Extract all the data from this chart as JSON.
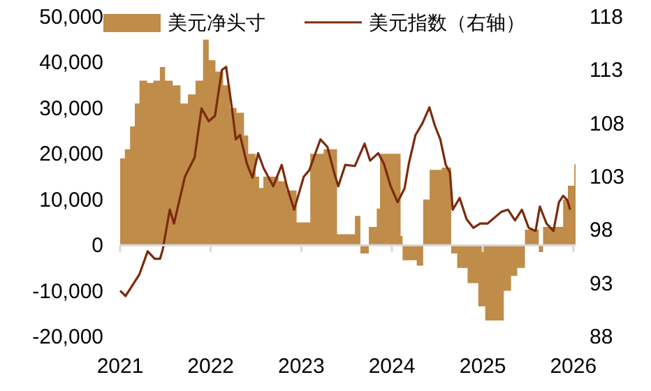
{
  "chart_data": {
    "type": "area",
    "legend": "top",
    "xlim": [
      "2021-01-01",
      "2026-01-10"
    ],
    "xticks": [
      {
        "value": "2021-01-01",
        "label": "2021"
      },
      {
        "value": "2022-01-01",
        "label": "2022"
      },
      {
        "value": "2023-01-01",
        "label": "2023"
      },
      {
        "value": "2024-01-01",
        "label": "2024"
      },
      {
        "value": "2025-01-01",
        "label": "2025"
      },
      {
        "value": "2026-01-01",
        "label": "2026"
      }
    ],
    "ylim": [
      -20000,
      50000
    ],
    "yticks": [
      {
        "value": -20000,
        "label": "-20,000"
      },
      {
        "value": -10000,
        "label": "-10,000"
      },
      {
        "value": 0,
        "label": "0"
      },
      {
        "value": 10000,
        "label": "10,000"
      },
      {
        "value": 20000,
        "label": "20,000"
      },
      {
        "value": 30000,
        "label": "30,000"
      },
      {
        "value": 40000,
        "label": "40,000"
      },
      {
        "value": 50000,
        "label": "50,000"
      }
    ],
    "y2lim": [
      88,
      118
    ],
    "y2ticks": [
      88,
      93,
      98,
      103,
      108,
      113,
      118
    ],
    "series": [
      {
        "name": "美元净头寸",
        "type": "area",
        "color": "#bf8c4a",
        "x": [
          "2021-01-01",
          "2021-01-20",
          "2021-02-10",
          "2021-03-01",
          "2021-03-20",
          "2021-04-20",
          "2021-05-15",
          "2021-06-10",
          "2021-07-01",
          "2021-08-01",
          "2021-09-01",
          "2021-10-01",
          "2021-11-01",
          "2021-12-01",
          "2021-12-24",
          "2022-01-20",
          "2022-02-20",
          "2022-03-20",
          "2022-04-15",
          "2022-05-15",
          "2022-06-01",
          "2022-07-01",
          "2022-07-15",
          "2022-08-01",
          "2022-09-01",
          "2022-10-01",
          "2022-11-01",
          "2022-12-13",
          "2023-02-06",
          "2023-04-01",
          "2023-05-25",
          "2023-08-05",
          "2023-08-27",
          "2023-09-30",
          "2023-11-01",
          "2023-11-14",
          "2024-02-05",
          "2024-02-13",
          "2024-04-10",
          "2024-05-06",
          "2024-06-01",
          "2024-07-20",
          "2024-08-27",
          "2024-09-20",
          "2024-11-01",
          "2024-12-14",
          "2025-01-11",
          "2025-03-27",
          "2025-04-25",
          "2025-05-20",
          "2025-06-20",
          "2025-08-15",
          "2025-09-01",
          "2025-11-21",
          "2025-12-10",
          "2026-01-05"
        ],
        "values": [
          19000,
          21000,
          26000,
          31000,
          36000,
          35500,
          36000,
          39000,
          36000,
          35000,
          31000,
          33000,
          36000,
          45000,
          40500,
          38000,
          35000,
          30000,
          29000,
          24000,
          20000,
          15000,
          12500,
          15000,
          15000,
          14000,
          12000,
          5000,
          20000,
          21000,
          2400,
          6400,
          -1800,
          4000,
          8000,
          20000,
          2000,
          -3300,
          -4500,
          10000,
          16500,
          17000,
          -1800,
          -5000,
          -8300,
          -13400,
          -16500,
          -10000,
          -6700,
          -5000,
          3400,
          -1500,
          4000,
          10000,
          13000,
          17700
        ]
      },
      {
        "name": "美元指数（右轴）",
        "type": "line",
        "axis": "y2",
        "color": "#7b2a0c",
        "x": [
          "2021-01-01",
          "2021-01-23",
          "2021-03-19",
          "2021-04-22",
          "2021-05-20",
          "2021-06-11",
          "2021-06-22",
          "2021-07-20",
          "2021-08-06",
          "2021-09-19",
          "2021-10-28",
          "2021-11-25",
          "2021-12-24",
          "2022-01-18",
          "2022-02-15",
          "2022-03-04",
          "2022-03-27",
          "2022-04-12",
          "2022-04-29",
          "2022-05-27",
          "2022-06-18",
          "2022-07-11",
          "2022-08-02",
          "2022-09-10",
          "2022-10-14",
          "2022-11-05",
          "2022-12-03",
          "2023-01-11",
          "2023-02-02",
          "2023-03-19",
          "2023-04-16",
          "2023-05-13",
          "2023-05-30",
          "2023-06-27",
          "2023-08-05",
          "2023-09-13",
          "2023-10-05",
          "2023-11-07",
          "2023-11-30",
          "2023-12-27",
          "2024-01-24",
          "2024-02-21",
          "2024-03-09",
          "2024-04-05",
          "2024-05-03",
          "2024-05-31",
          "2024-06-22",
          "2024-07-14",
          "2024-08-05",
          "2024-08-22",
          "2024-09-02",
          "2024-09-30",
          "2024-10-28",
          "2024-11-24",
          "2024-12-22",
          "2025-01-20",
          "2025-03-17",
          "2025-04-13",
          "2025-05-11",
          "2025-06-08",
          "2025-07-05",
          "2025-08-02",
          "2025-08-19",
          "2025-09-15",
          "2025-10-13",
          "2025-11-04",
          "2025-11-21",
          "2025-12-08",
          "2025-12-19"
        ],
        "values": [
          92.3,
          91.8,
          93.8,
          96.0,
          95.3,
          95.3,
          96.2,
          99.9,
          98.6,
          103.0,
          104.8,
          109.4,
          108.2,
          108.7,
          113.0,
          113.3,
          109.5,
          106.5,
          106.9,
          104.2,
          102.9,
          105.2,
          103.8,
          102.1,
          104.1,
          102.0,
          99.9,
          103.0,
          103.6,
          106.5,
          105.8,
          103.4,
          102.1,
          104.1,
          104.0,
          106.1,
          104.5,
          105.2,
          104.2,
          102.1,
          100.6,
          101.9,
          104.2,
          106.9,
          108.0,
          109.5,
          107.8,
          106.5,
          104.1,
          103.4,
          99.9,
          101.0,
          99.0,
          98.2,
          98.6,
          98.6,
          99.7,
          99.9,
          98.9,
          99.9,
          98.2,
          97.9,
          100.2,
          98.6,
          97.9,
          100.6,
          101.2,
          100.8,
          99.9
        ]
      }
    ]
  }
}
